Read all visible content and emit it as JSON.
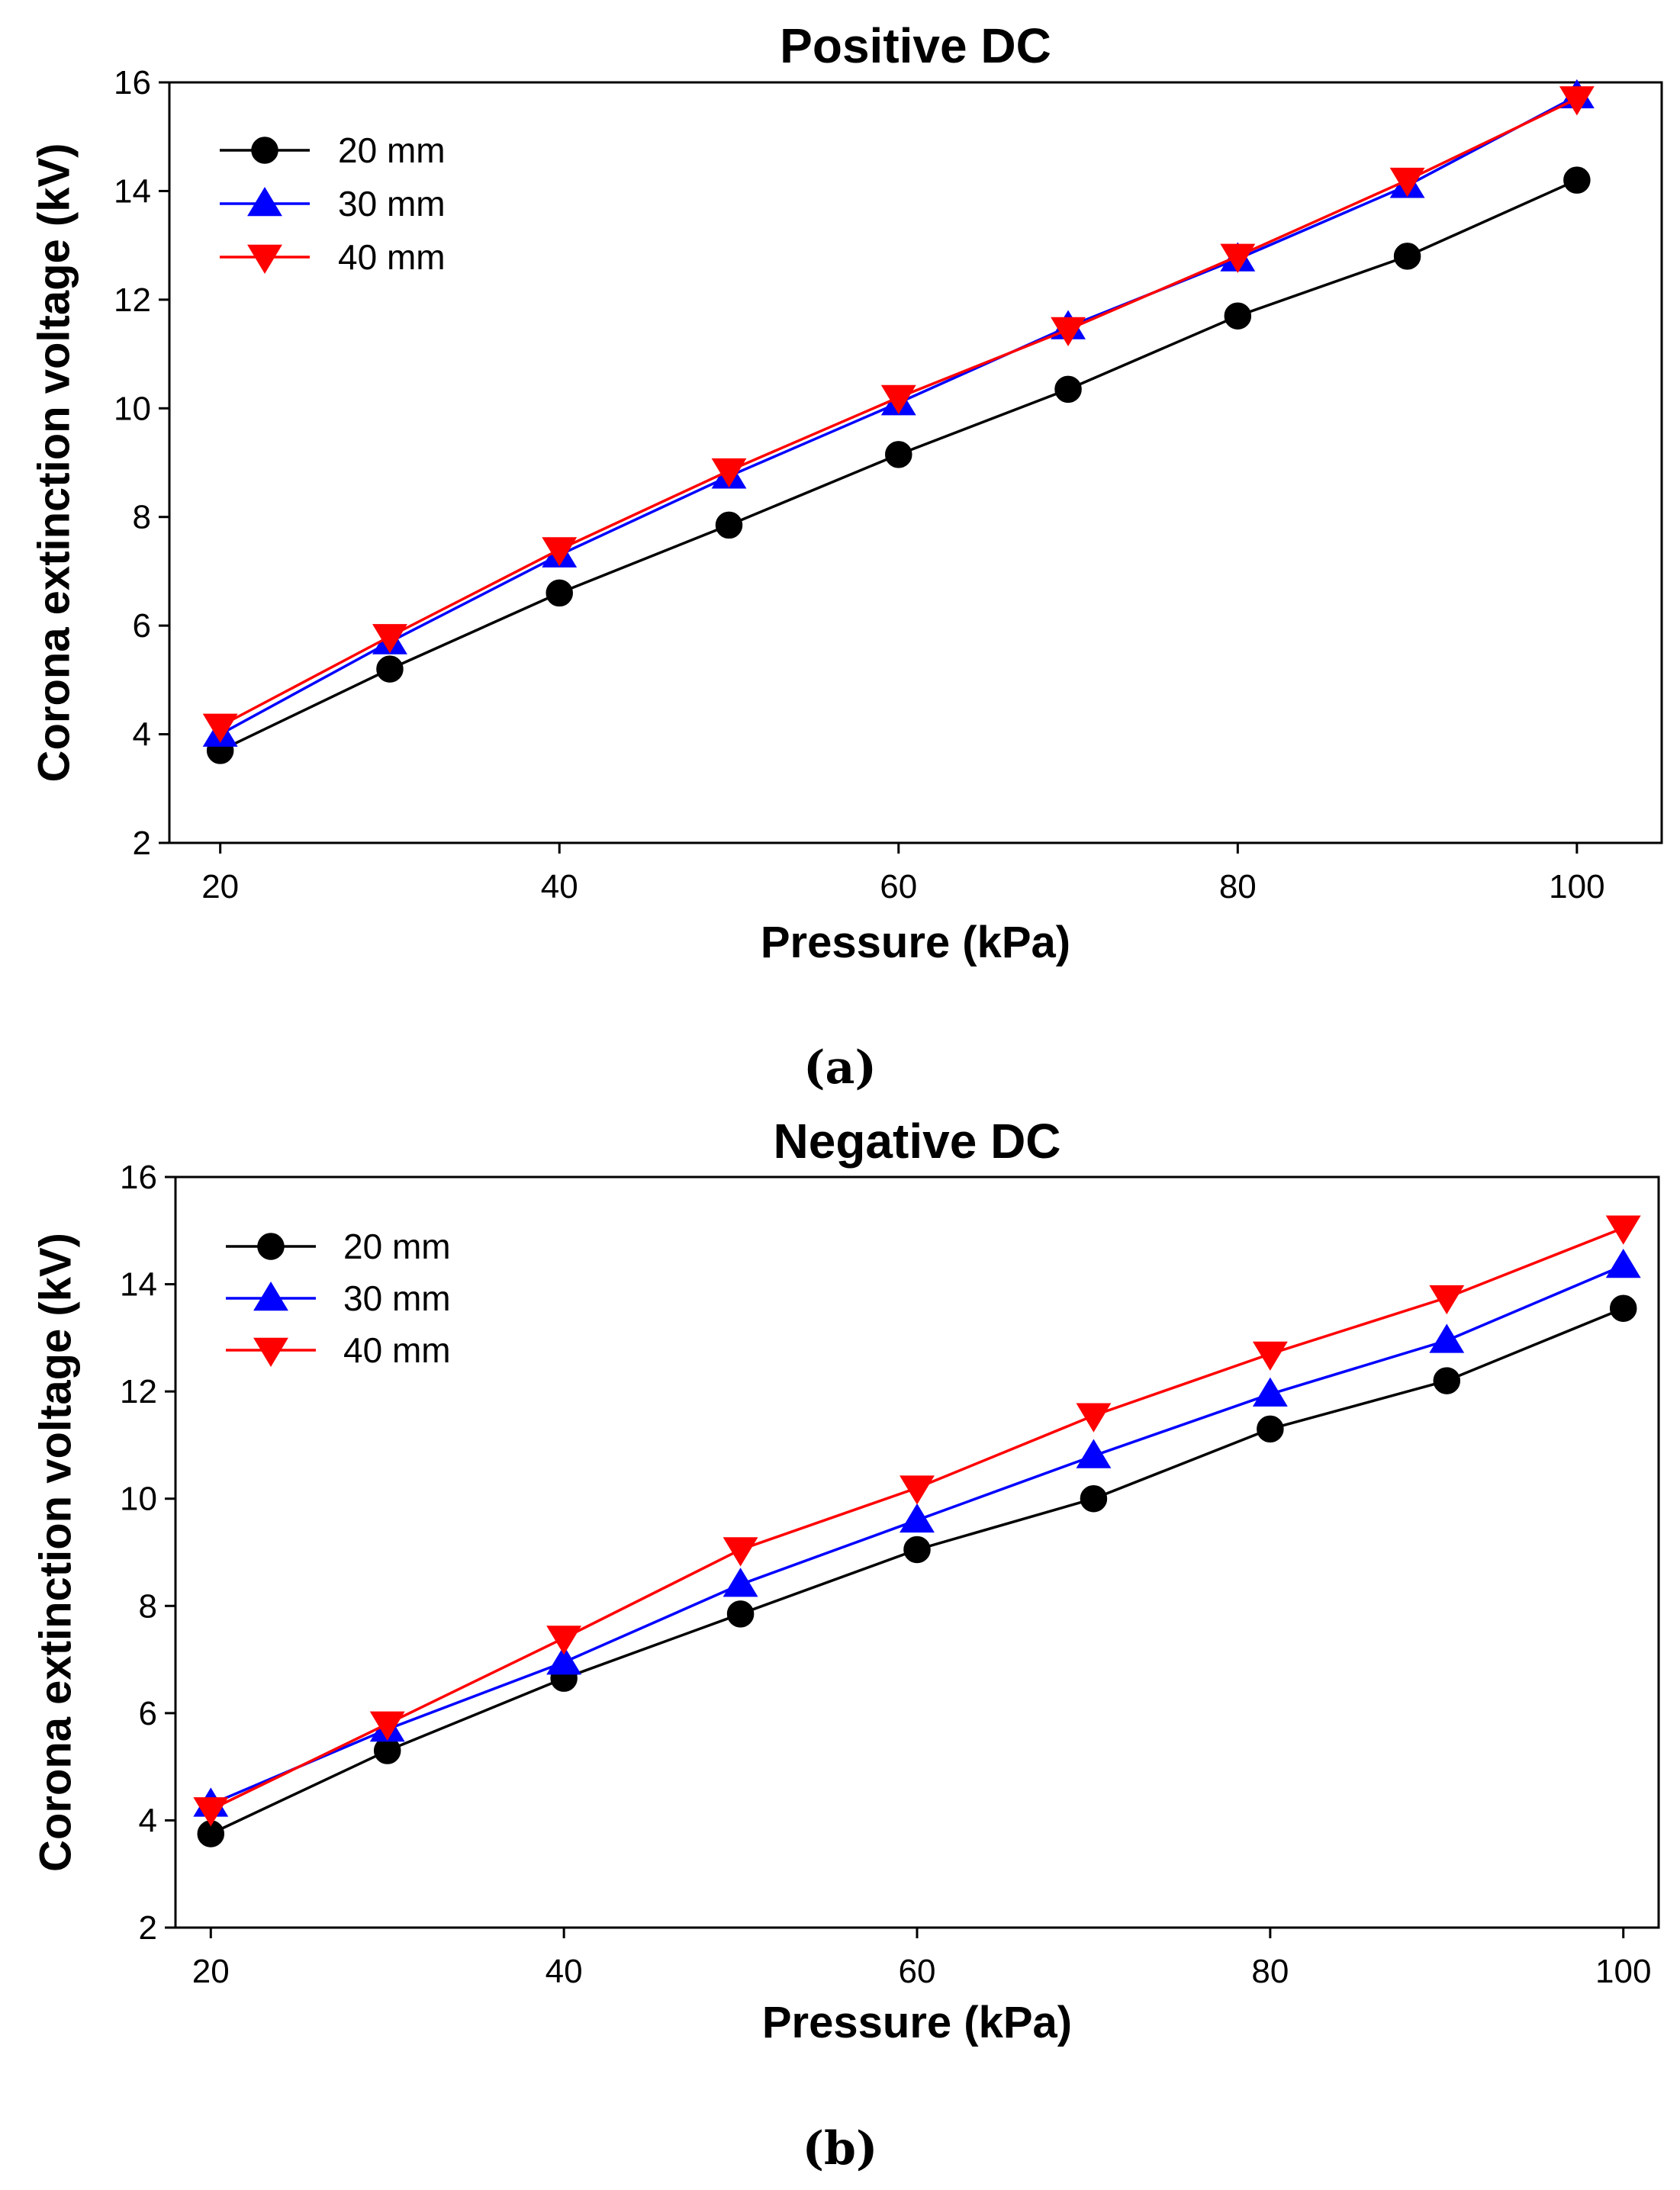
{
  "chart_data": [
    {
      "panel_label": "(a)",
      "type": "line",
      "title": "Positive DC",
      "xlabel": "Pressure (kPa)",
      "ylabel": "Corona extinction voltage (kV)",
      "xlim": [
        17,
        105
      ],
      "ylim": [
        2,
        16
      ],
      "xticks": [
        20,
        40,
        60,
        80,
        100
      ],
      "yticks": [
        2,
        4,
        6,
        8,
        10,
        12,
        14,
        16
      ],
      "grid": false,
      "legend_position": "top-left",
      "x": [
        20,
        30,
        40,
        50,
        60,
        70,
        80,
        90,
        100
      ],
      "series": [
        {
          "name": "20 mm",
          "color": "#000000",
          "marker": "circle",
          "values": [
            3.7,
            5.2,
            6.6,
            7.85,
            9.15,
            10.35,
            11.7,
            12.8,
            14.2
          ]
        },
        {
          "name": "30 mm",
          "color": "#0000ff",
          "marker": "triangle-up",
          "values": [
            4.0,
            5.7,
            7.3,
            8.75,
            10.1,
            11.5,
            12.75,
            14.1,
            15.75
          ]
        },
        {
          "name": "40 mm",
          "color": "#ff0000",
          "marker": "triangle-down",
          "values": [
            4.15,
            5.8,
            7.4,
            8.85,
            10.2,
            11.45,
            12.8,
            14.2,
            15.7
          ]
        }
      ]
    },
    {
      "panel_label": "(b)",
      "type": "line",
      "title": "Negative DC",
      "xlabel": "Pressure (kPa)",
      "ylabel": "Corona extinction voltage (kV)",
      "xlim": [
        18,
        102
      ],
      "ylim": [
        2,
        16
      ],
      "xticks": [
        20,
        40,
        60,
        80,
        100
      ],
      "yticks": [
        2,
        4,
        6,
        8,
        10,
        12,
        14,
        16
      ],
      "grid": false,
      "legend_position": "top-left",
      "x": [
        20,
        30,
        40,
        50,
        60,
        70,
        80,
        90,
        100
      ],
      "series": [
        {
          "name": "20 mm",
          "color": "#000000",
          "marker": "circle",
          "values": [
            3.75,
            5.3,
            6.65,
            7.85,
            9.05,
            10.0,
            11.3,
            12.2,
            13.55
          ]
        },
        {
          "name": "30 mm",
          "color": "#0000ff",
          "marker": "triangle-up",
          "values": [
            4.3,
            5.7,
            6.95,
            8.4,
            9.6,
            10.8,
            11.95,
            12.95,
            14.35
          ]
        },
        {
          "name": "40 mm",
          "color": "#ff0000",
          "marker": "triangle-down",
          "values": [
            4.2,
            5.8,
            7.4,
            9.05,
            10.2,
            11.55,
            12.7,
            13.75,
            15.05
          ]
        }
      ]
    }
  ]
}
